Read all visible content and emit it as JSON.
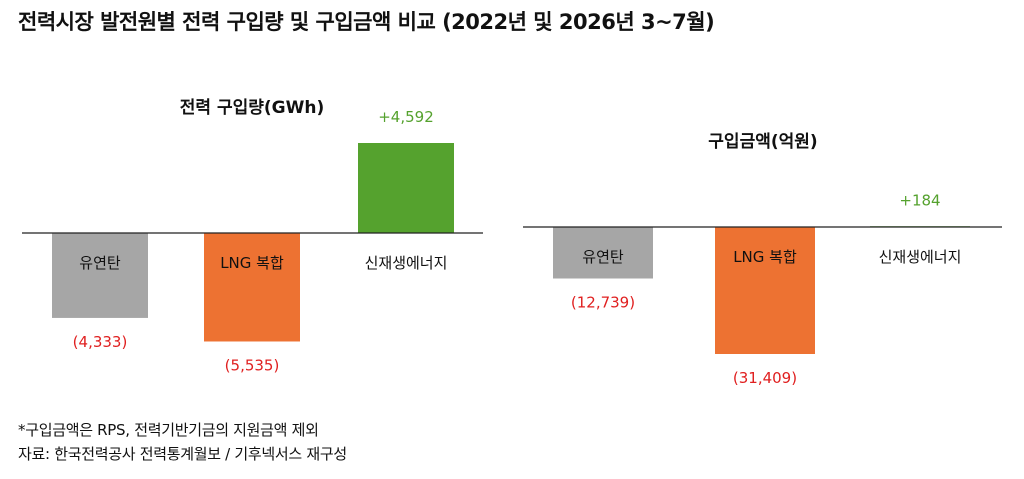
{
  "title": "전력시장 발전원별 전력 구입량 및 구입금액 비교 (2022년 및 2026년 3~7월)",
  "footnote": "*구입금액은 RPS, 전력기반기금의 지원금액 제외",
  "source": "자료: 한국전력공사 전력통계월보 / 기후넥서스 재구성",
  "colors": {
    "coal": "#a6a6a6",
    "lng": "#ed7232",
    "renewable": "#55a22e",
    "negative_label": "#e02020",
    "positive_label": "#55a22e"
  },
  "chart_data": [
    {
      "type": "bar",
      "title": "전력 구입량(GWh)",
      "categories": [
        "유연탄",
        "LNG 복합",
        "신재생에너지"
      ],
      "values": [
        -4333,
        -5535,
        4592
      ],
      "value_labels": [
        "(4,333)",
        "(5,535)",
        "+4,592"
      ]
    },
    {
      "type": "bar",
      "title": "구입금액(억원)",
      "categories": [
        "유연탄",
        "LNG 복합",
        "신재생에너지"
      ],
      "values": [
        -12739,
        -31409,
        184
      ],
      "value_labels": [
        "(12,739)",
        "(31,409)",
        "+184"
      ]
    }
  ]
}
